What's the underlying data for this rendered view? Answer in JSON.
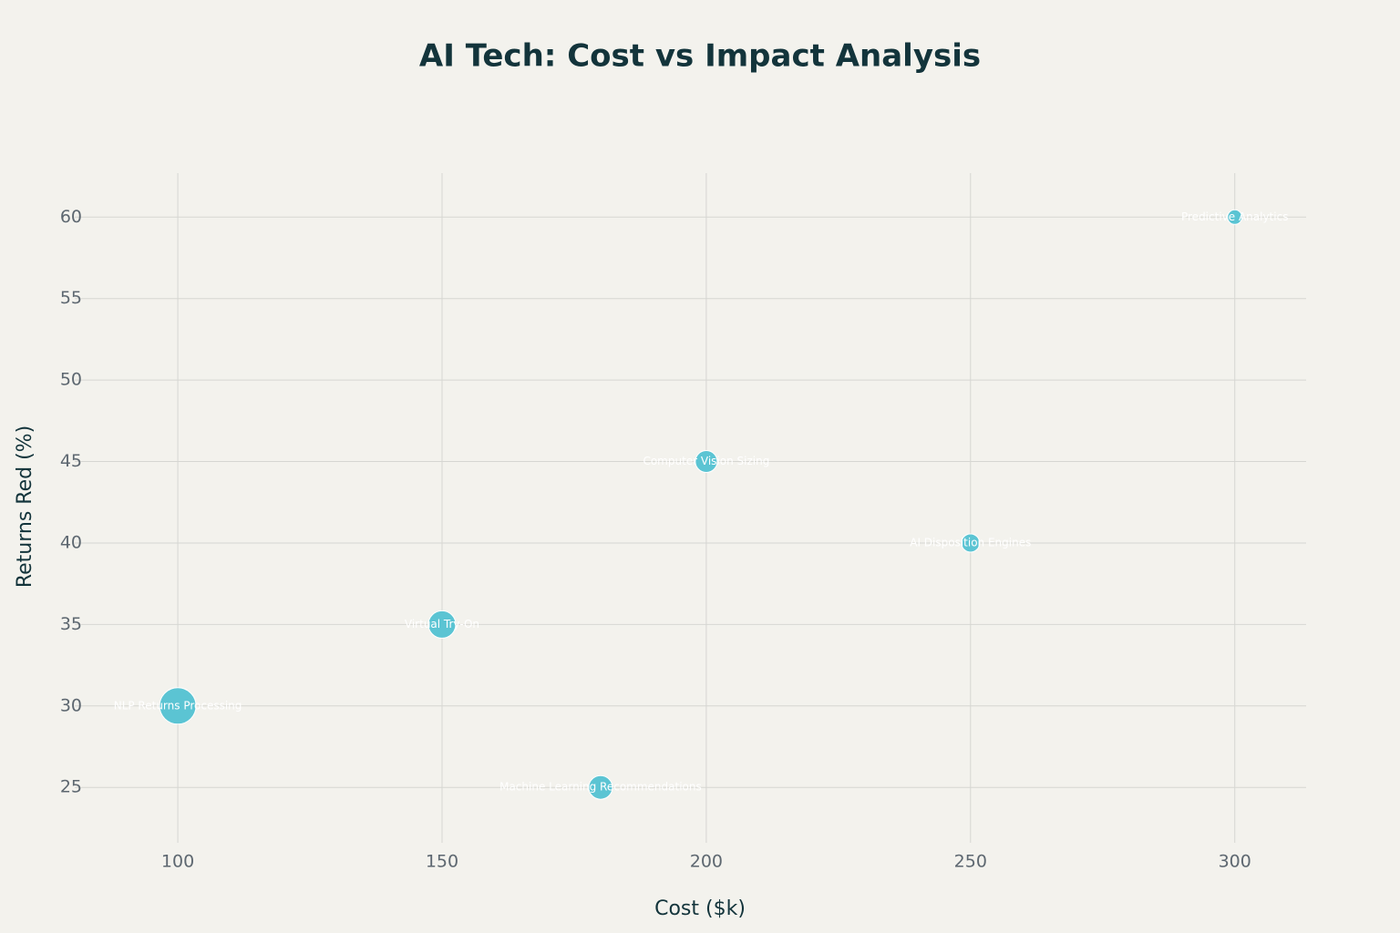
{
  "chart_data": {
    "type": "scatter",
    "title": "AI Tech: Cost vs Impact Analysis",
    "x_label": "Cost ($k)",
    "y_label": "Returns Red (%)",
    "labels": [
      "Predictive Analytics",
      "Computer Vision Sizing",
      "AI Disposition Engines",
      "Virtual Try-On",
      "NLP Returns Processing",
      "Machine Learning Recommendations"
    ],
    "x": [
      300,
      200,
      250,
      150,
      100,
      180
    ],
    "y": [
      60,
      45,
      40,
      35,
      30,
      25
    ],
    "sizes": [
      16,
      24,
      20,
      30,
      40,
      26
    ],
    "color": "#5bc4d3",
    "xlim": [
      80.5,
      313.5
    ],
    "ylim": [
      21.6,
      62.7
    ],
    "xticks": [
      100,
      150,
      200,
      250,
      300
    ],
    "yticks": [
      25,
      30,
      35,
      40,
      45,
      50,
      55,
      60
    ],
    "grid": true
  }
}
